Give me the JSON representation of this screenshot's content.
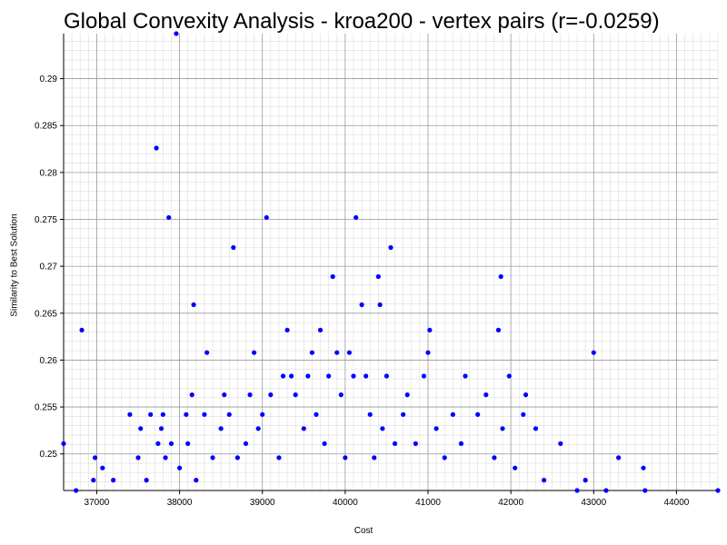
{
  "chart_data": {
    "type": "scatter",
    "title": "Global Convexity Analysis - kroa200 - vertex pairs (r=-0.0259)",
    "xlabel": "Cost",
    "ylabel": "Similarity to Best Solution",
    "xlim": [
      36600,
      44500
    ],
    "ylim": [
      0.2461,
      0.2948
    ],
    "xticks": [
      37000,
      38000,
      39000,
      40000,
      41000,
      42000,
      43000,
      44000
    ],
    "yticks": [
      0.25,
      0.255,
      0.26,
      0.265,
      0.27,
      0.275,
      0.28,
      0.285,
      0.29
    ],
    "grid": true,
    "point_color": "#0000ff",
    "series": [
      {
        "values": [
          [
            36600,
            0.2511
          ],
          [
            36750,
            0.2461
          ],
          [
            36820,
            0.2632
          ],
          [
            36960,
            0.2472
          ],
          [
            36980,
            0.2496
          ],
          [
            37070,
            0.2485
          ],
          [
            37200,
            0.2472
          ],
          [
            37400,
            0.2542
          ],
          [
            37500,
            0.2496
          ],
          [
            37530,
            0.2527
          ],
          [
            37600,
            0.2472
          ],
          [
            37650,
            0.2542
          ],
          [
            37720,
            0.2826
          ],
          [
            37740,
            0.2511
          ],
          [
            37780,
            0.2527
          ],
          [
            37800,
            0.2542
          ],
          [
            37830,
            0.2496
          ],
          [
            37870,
            0.2752
          ],
          [
            37900,
            0.2511
          ],
          [
            37960,
            0.2948
          ],
          [
            38000,
            0.2485
          ],
          [
            38080,
            0.2542
          ],
          [
            38100,
            0.2511
          ],
          [
            38150,
            0.2563
          ],
          [
            38170,
            0.2659
          ],
          [
            38200,
            0.2472
          ],
          [
            38300,
            0.2542
          ],
          [
            38330,
            0.2608
          ],
          [
            38400,
            0.2496
          ],
          [
            38500,
            0.2527
          ],
          [
            38540,
            0.2563
          ],
          [
            38600,
            0.2542
          ],
          [
            38650,
            0.272
          ],
          [
            38700,
            0.2496
          ],
          [
            38800,
            0.2511
          ],
          [
            38850,
            0.2563
          ],
          [
            38900,
            0.2608
          ],
          [
            38950,
            0.2527
          ],
          [
            39000,
            0.2542
          ],
          [
            39050,
            0.2752
          ],
          [
            39100,
            0.2563
          ],
          [
            39200,
            0.2496
          ],
          [
            39250,
            0.2583
          ],
          [
            39300,
            0.2632
          ],
          [
            39350,
            0.2583
          ],
          [
            39400,
            0.2563
          ],
          [
            39500,
            0.2527
          ],
          [
            39550,
            0.2583
          ],
          [
            39600,
            0.2608
          ],
          [
            39650,
            0.2542
          ],
          [
            39700,
            0.2632
          ],
          [
            39750,
            0.2511
          ],
          [
            39800,
            0.2583
          ],
          [
            39850,
            0.2689
          ],
          [
            39900,
            0.2608
          ],
          [
            39950,
            0.2563
          ],
          [
            40000,
            0.2496
          ],
          [
            40050,
            0.2608
          ],
          [
            40100,
            0.2583
          ],
          [
            40130,
            0.2752
          ],
          [
            40200,
            0.2659
          ],
          [
            40250,
            0.2583
          ],
          [
            40300,
            0.2542
          ],
          [
            40350,
            0.2496
          ],
          [
            40400,
            0.2689
          ],
          [
            40420,
            0.2659
          ],
          [
            40450,
            0.2527
          ],
          [
            40500,
            0.2583
          ],
          [
            40550,
            0.272
          ],
          [
            40600,
            0.2511
          ],
          [
            40700,
            0.2542
          ],
          [
            40750,
            0.2563
          ],
          [
            40850,
            0.2511
          ],
          [
            40950,
            0.2583
          ],
          [
            41000,
            0.2608
          ],
          [
            41020,
            0.2632
          ],
          [
            41100,
            0.2527
          ],
          [
            41200,
            0.2496
          ],
          [
            41300,
            0.2542
          ],
          [
            41400,
            0.2511
          ],
          [
            41450,
            0.2583
          ],
          [
            41600,
            0.2542
          ],
          [
            41700,
            0.2563
          ],
          [
            41800,
            0.2496
          ],
          [
            41850,
            0.2632
          ],
          [
            41880,
            0.2689
          ],
          [
            41900,
            0.2527
          ],
          [
            41980,
            0.2583
          ],
          [
            42050,
            0.2485
          ],
          [
            42150,
            0.2542
          ],
          [
            42180,
            0.2563
          ],
          [
            42300,
            0.2527
          ],
          [
            42400,
            0.2472
          ],
          [
            42600,
            0.2511
          ],
          [
            42800,
            0.2461
          ],
          [
            42900,
            0.2472
          ],
          [
            43000,
            0.2608
          ],
          [
            43150,
            0.2461
          ],
          [
            43300,
            0.2496
          ],
          [
            43600,
            0.2485
          ],
          [
            43620,
            0.2461
          ],
          [
            44500,
            0.2461
          ]
        ]
      }
    ]
  }
}
